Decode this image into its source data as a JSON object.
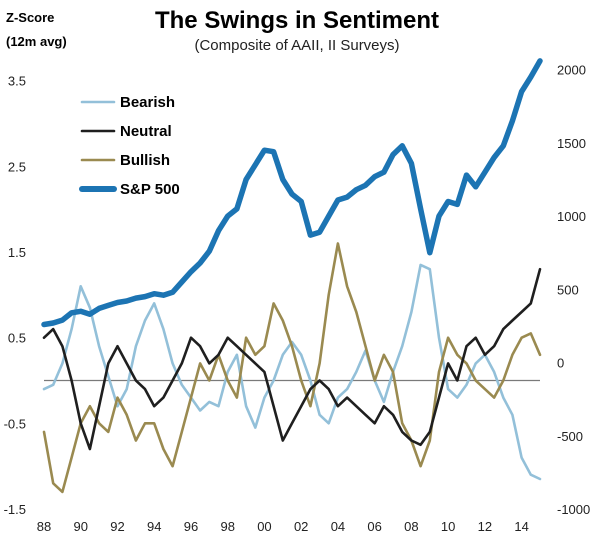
{
  "chart_data": {
    "type": "line",
    "title": "The Swings in Sentiment",
    "subtitle": "(Composite of AAII,  II Surveys)",
    "ylabel_left": [
      "Z-Score",
      "(12m avg)"
    ],
    "x_ticks": [
      "88",
      "90",
      "92",
      "94",
      "96",
      "98",
      "00",
      "02",
      "04",
      "06",
      "08",
      "10",
      "12",
      "14"
    ],
    "x_range": [
      1988,
      2015
    ],
    "y_left_ticks": [
      "3.5",
      "2.5",
      "1.5",
      "0.5",
      "-0.5",
      "-1.5"
    ],
    "y_left_range": [
      -1.5,
      3.8
    ],
    "y_right_ticks": [
      "2000",
      "1500",
      "1000",
      "500",
      "0",
      "-500",
      "-1000"
    ],
    "y_right_range": [
      -1000,
      2100
    ],
    "zero_line": true,
    "legend_position": "top-left",
    "colors": {
      "bearish": "#93c0d9",
      "neutral": "#1f1f1f",
      "bullish": "#9a8a50",
      "sp500": "#1c74b3"
    },
    "series": [
      {
        "name": "Bearish",
        "axis": "left",
        "color": "#93c0d9",
        "x": [
          1988.0,
          1988.5,
          1989.0,
          1989.5,
          1990.0,
          1990.5,
          1991.0,
          1991.5,
          1992.0,
          1992.5,
          1993.0,
          1993.5,
          1994.0,
          1994.5,
          1995.0,
          1995.5,
          1996.0,
          1996.5,
          1997.0,
          1997.5,
          1998.0,
          1998.5,
          1999.0,
          1999.5,
          2000.0,
          2000.5,
          2001.0,
          2001.5,
          2002.0,
          2002.5,
          2003.0,
          2003.5,
          2004.0,
          2004.5,
          2005.0,
          2005.5,
          2006.0,
          2006.5,
          2007.0,
          2007.5,
          2008.0,
          2008.5,
          2009.0,
          2009.5,
          2010.0,
          2010.5,
          2011.0,
          2011.5,
          2012.0,
          2012.5,
          2013.0,
          2013.5,
          2014.0,
          2014.5,
          2015.0
        ],
        "values": [
          -0.1,
          -0.05,
          0.2,
          0.6,
          1.1,
          0.85,
          0.4,
          0.05,
          -0.3,
          -0.1,
          0.4,
          0.7,
          0.9,
          0.6,
          0.2,
          -0.05,
          -0.2,
          -0.35,
          -0.25,
          -0.3,
          0.1,
          0.3,
          -0.3,
          -0.55,
          -0.2,
          0.0,
          0.3,
          0.45,
          0.3,
          0.0,
          -0.4,
          -0.5,
          -0.2,
          -0.1,
          0.1,
          0.35,
          0.0,
          -0.25,
          0.1,
          0.4,
          0.8,
          1.35,
          1.3,
          0.5,
          -0.1,
          -0.2,
          -0.05,
          0.2,
          0.3,
          0.1,
          -0.2,
          -0.4,
          -0.9,
          -1.1,
          -1.15
        ]
      },
      {
        "name": "Neutral",
        "axis": "left",
        "color": "#1f1f1f",
        "x": [
          1988.0,
          1988.5,
          1989.0,
          1989.5,
          1990.0,
          1990.5,
          1991.0,
          1991.5,
          1992.0,
          1992.5,
          1993.0,
          1993.5,
          1994.0,
          1994.5,
          1995.0,
          1995.5,
          1996.0,
          1996.5,
          1997.0,
          1997.5,
          1998.0,
          1998.5,
          1999.0,
          1999.5,
          2000.0,
          2000.5,
          2001.0,
          2001.5,
          2002.0,
          2002.5,
          2003.0,
          2003.5,
          2004.0,
          2004.5,
          2005.0,
          2005.5,
          2006.0,
          2006.5,
          2007.0,
          2007.5,
          2008.0,
          2008.5,
          2009.0,
          2009.5,
          2010.0,
          2010.5,
          2011.0,
          2011.5,
          2012.0,
          2012.5,
          2013.0,
          2013.5,
          2014.0,
          2014.5,
          2015.0
        ],
        "values": [
          0.5,
          0.6,
          0.4,
          0.0,
          -0.5,
          -0.8,
          -0.3,
          0.2,
          0.4,
          0.2,
          0.0,
          -0.1,
          -0.3,
          -0.2,
          0.0,
          0.2,
          0.5,
          0.4,
          0.2,
          0.3,
          0.5,
          0.4,
          0.3,
          0.2,
          0.1,
          -0.3,
          -0.7,
          -0.5,
          -0.3,
          -0.1,
          0.0,
          -0.1,
          -0.3,
          -0.2,
          -0.3,
          -0.4,
          -0.5,
          -0.3,
          -0.4,
          -0.6,
          -0.7,
          -0.75,
          -0.6,
          -0.2,
          0.2,
          0.0,
          0.4,
          0.5,
          0.3,
          0.4,
          0.6,
          0.7,
          0.8,
          0.9,
          1.3
        ]
      },
      {
        "name": "Bullish",
        "axis": "left",
        "color": "#9a8a50",
        "x": [
          1988.0,
          1988.5,
          1989.0,
          1989.5,
          1990.0,
          1990.5,
          1991.0,
          1991.5,
          1992.0,
          1992.5,
          1993.0,
          1993.5,
          1994.0,
          1994.5,
          1995.0,
          1995.5,
          1996.0,
          1996.5,
          1997.0,
          1997.5,
          1998.0,
          1998.5,
          1999.0,
          1999.5,
          2000.0,
          2000.5,
          2001.0,
          2001.5,
          2002.0,
          2002.5,
          2003.0,
          2003.5,
          2004.0,
          2004.5,
          2005.0,
          2005.5,
          2006.0,
          2006.5,
          2007.0,
          2007.5,
          2008.0,
          2008.5,
          2009.0,
          2009.5,
          2010.0,
          2010.5,
          2011.0,
          2011.5,
          2012.0,
          2012.5,
          2013.0,
          2013.5,
          2014.0,
          2014.5,
          2015.0
        ],
        "values": [
          -0.6,
          -1.2,
          -1.3,
          -0.9,
          -0.5,
          -0.3,
          -0.5,
          -0.6,
          -0.2,
          -0.4,
          -0.7,
          -0.5,
          -0.5,
          -0.8,
          -1.0,
          -0.6,
          -0.2,
          0.2,
          0.0,
          0.3,
          0.0,
          -0.2,
          0.5,
          0.3,
          0.4,
          0.9,
          0.7,
          0.4,
          0.0,
          -0.3,
          0.2,
          1.0,
          1.6,
          1.1,
          0.8,
          0.4,
          0.0,
          0.3,
          0.1,
          -0.5,
          -0.7,
          -1.0,
          -0.7,
          0.1,
          0.5,
          0.3,
          0.2,
          0.0,
          -0.1,
          -0.2,
          0.0,
          0.3,
          0.5,
          0.55,
          0.3
        ]
      },
      {
        "name": "S&P 500",
        "axis": "right",
        "color": "#1c74b3",
        "x": [
          1988.0,
          1988.5,
          1989.0,
          1989.5,
          1990.0,
          1990.5,
          1991.0,
          1991.5,
          1992.0,
          1992.5,
          1993.0,
          1993.5,
          1994.0,
          1994.5,
          1995.0,
          1995.5,
          1996.0,
          1996.5,
          1997.0,
          1997.5,
          1998.0,
          1998.5,
          1999.0,
          1999.5,
          2000.0,
          2000.5,
          2001.0,
          2001.5,
          2002.0,
          2002.5,
          2003.0,
          2003.5,
          2004.0,
          2004.5,
          2005.0,
          2005.5,
          2006.0,
          2006.5,
          2007.0,
          2007.5,
          2008.0,
          2008.5,
          2009.0,
          2009.5,
          2010.0,
          2010.5,
          2011.0,
          2011.5,
          2012.0,
          2012.5,
          2013.0,
          2013.5,
          2014.0,
          2014.5,
          2015.0
        ],
        "values": [
          260,
          270,
          290,
          340,
          350,
          330,
          370,
          390,
          410,
          420,
          440,
          450,
          470,
          460,
          480,
          550,
          620,
          680,
          760,
          900,
          1000,
          1050,
          1250,
          1350,
          1450,
          1440,
          1250,
          1150,
          1100,
          870,
          890,
          1000,
          1110,
          1130,
          1180,
          1210,
          1270,
          1300,
          1420,
          1480,
          1360,
          1050,
          750,
          1000,
          1100,
          1080,
          1280,
          1200,
          1300,
          1400,
          1480,
          1650,
          1850,
          1950,
          2060
        ]
      }
    ]
  }
}
